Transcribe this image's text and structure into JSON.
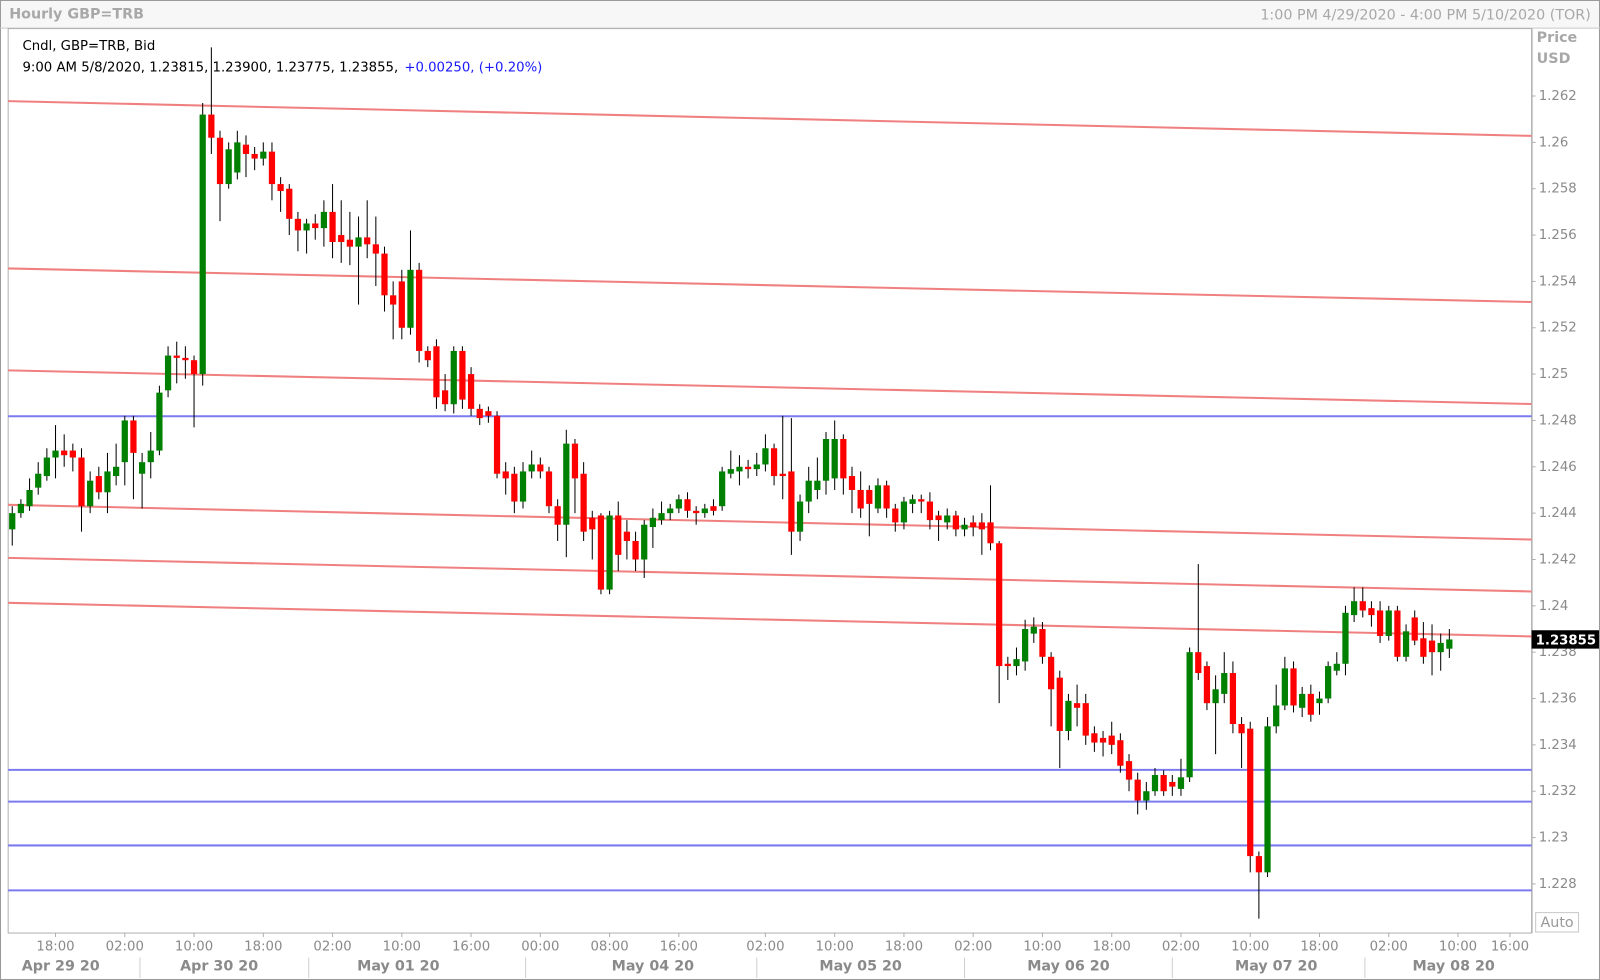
{
  "chart_data": {
    "type": "candlestick",
    "title": "Hourly GBP=TRB",
    "range_text": "1:00 PM 4/29/2020 - 4:00 PM 5/10/2020 (TOR)",
    "y_axis_label": "Price",
    "y_axis_unit": "USD",
    "auto_button": "Auto",
    "info": {
      "name": "Cndl, GBP=TRB, Bid",
      "values_text": "9:00 AM 5/8/2020, 1.23815, 1.23900, 1.23775, 1.23855,",
      "change_text": "+0.00250, (+0.20%)"
    },
    "up_color": "#008000",
    "down_color": "#ff0000",
    "trendline_color": "#f08080",
    "hline_color": "#7b7bf0",
    "open": [
      1.2433,
      1.244,
      1.2443,
      1.2451,
      1.2456,
      1.2464,
      1.2467,
      1.2467,
      1.2464,
      1.2443,
      1.2456,
      1.2449,
      1.2456,
      1.2462,
      1.248,
      1.2457,
      1.2462,
      1.2467,
      1.2493,
      1.2508,
      1.2507,
      1.2506,
      1.25,
      1.2612,
      1.2602,
      1.2582,
      1.2587,
      1.2599,
      1.2595,
      1.2593,
      1.2596,
      1.2582,
      1.258,
      1.2567,
      1.2562,
      1.2565,
      1.2563,
      1.257,
      1.256,
      1.2558,
      1.2555,
      1.2559,
      1.2556,
      1.2552,
      1.2534,
      1.254,
      1.252,
      1.2545,
      1.251,
      1.2512,
      1.2493,
      1.2487,
      1.251,
      1.25,
      1.2485,
      1.2484,
      1.2482,
      1.2458,
      1.2457,
      1.2445,
      1.2458,
      1.2461,
      1.2458,
      1.2443,
      1.2435,
      1.247,
      1.2457,
      1.2438,
      1.2439,
      1.2407,
      1.2439,
      1.2432,
      1.2428,
      1.242,
      1.2434,
      1.2437,
      1.244,
      1.2442,
      1.2446,
      1.2441,
      1.244,
      1.2443,
      1.2443,
      1.2457,
      1.2458,
      1.246,
      1.2459,
      1.2461,
      1.2468,
      1.2457,
      1.2458,
      1.2432,
      1.2445,
      1.245,
      1.2454,
      1.2455,
      1.2472,
      1.2456,
      1.245,
      1.245,
      1.2442,
      1.2452,
      1.2442,
      1.2436,
      1.2444,
      1.2446,
      1.2445,
      1.2439,
      1.2436,
      1.2439,
      1.2433,
      1.2436,
      1.2436,
      1.2436,
      1.2427,
      1.2375,
      1.2374,
      1.2376,
      1.2388,
      1.239,
      1.2378,
      1.2369,
      1.2346,
      1.2358,
      1.2358,
      1.2345,
      1.2343,
      1.2344,
      1.2342,
      1.2333,
      1.2325,
      1.2316,
      1.232,
      1.2327,
      1.2324,
      1.2321,
      1.2326,
      1.238,
      1.2374,
      1.2358,
      1.2362,
      1.2371,
      1.2349,
      1.2347,
      1.2292,
      1.2285,
      1.2348,
      1.2357,
      1.2373,
      1.2356,
      1.2362,
      1.2358,
      1.236,
      1.2372,
      1.2375,
      1.2396,
      1.2402,
      1.2399,
      1.2398,
      1.2387,
      1.2398,
      1.2378,
      1.2395,
      1.2386,
      1.2385,
      1.238,
      1.23815
    ],
    "high": [
      1.2443,
      1.2446,
      1.2455,
      1.2462,
      1.2468,
      1.2478,
      1.2474,
      1.247,
      1.2468,
      1.2458,
      1.246,
      1.2466,
      1.247,
      1.2482,
      1.2482,
      1.2466,
      1.2475,
      1.2495,
      1.2512,
      1.2514,
      1.2512,
      1.2508,
      1.2617,
      1.2641,
      1.2605,
      1.26,
      1.2605,
      1.2603,
      1.2598,
      1.26,
      1.26,
      1.2585,
      1.2582,
      1.257,
      1.2567,
      1.2569,
      1.2575,
      1.2582,
      1.2575,
      1.257,
      1.2568,
      1.2575,
      1.2568,
      1.2555,
      1.254,
      1.2545,
      1.2562,
      1.2548,
      1.2512,
      1.2515,
      1.25,
      1.2512,
      1.2512,
      1.2503,
      1.2487,
      1.2486,
      1.2484,
      1.2462,
      1.246,
      1.2462,
      1.2467,
      1.2464,
      1.246,
      1.2446,
      1.2476,
      1.2472,
      1.2462,
      1.2441,
      1.244,
      1.2441,
      1.2445,
      1.2437,
      1.2432,
      1.2437,
      1.2442,
      1.2445,
      1.2444,
      1.2448,
      1.2449,
      1.2443,
      1.2444,
      1.2446,
      1.246,
      1.2467,
      1.2465,
      1.2463,
      1.2466,
      1.2474,
      1.247,
      1.2482,
      1.2481,
      1.2448,
      1.246,
      1.2464,
      1.2475,
      1.248,
      1.2474,
      1.246,
      1.2458,
      1.2452,
      1.2455,
      1.2454,
      1.2444,
      1.2447,
      1.2448,
      1.2448,
      1.2449,
      1.2441,
      1.2442,
      1.2441,
      1.2438,
      1.2439,
      1.244,
      1.2452,
      1.2428,
      1.2378,
      1.2382,
      1.2394,
      1.2395,
      1.2393,
      1.238,
      1.2372,
      1.2362,
      1.2366,
      1.2362,
      1.2348,
      1.2346,
      1.235,
      1.2345,
      1.2336,
      1.2328,
      1.2324,
      1.233,
      1.2329,
      1.2327,
      1.2334,
      1.2382,
      1.2418,
      1.2376,
      1.237,
      1.238,
      1.2376,
      1.2352,
      1.235,
      1.2294,
      1.2352,
      1.2366,
      1.2378,
      1.2376,
      1.2365,
      1.2366,
      1.2363,
      1.2376,
      1.238,
      1.24,
      1.2408,
      1.2408,
      1.2402,
      1.2402,
      1.24,
      1.24,
      1.2392,
      1.2398,
      1.2393,
      1.2392,
      1.2388,
      1.239
    ],
    "low": [
      1.2426,
      1.2438,
      1.2441,
      1.2448,
      1.2454,
      1.2455,
      1.246,
      1.2458,
      1.2432,
      1.244,
      1.2446,
      1.244,
      1.2452,
      1.2452,
      1.2446,
      1.2442,
      1.2455,
      1.2465,
      1.249,
      1.2496,
      1.2498,
      1.2477,
      1.2495,
      1.2595,
      1.2566,
      1.258,
      1.2584,
      1.2585,
      1.2588,
      1.259,
      1.2575,
      1.257,
      1.256,
      1.2553,
      1.2552,
      1.2558,
      1.2555,
      1.255,
      1.2548,
      1.2547,
      1.253,
      1.255,
      1.2538,
      1.2527,
      1.2515,
      1.2515,
      1.2517,
      1.2505,
      1.2503,
      1.2485,
      1.2484,
      1.2483,
      1.2485,
      1.2482,
      1.2478,
      1.2479,
      1.2455,
      1.2448,
      1.244,
      1.2442,
      1.2455,
      1.2455,
      1.244,
      1.2428,
      1.2421,
      1.244,
      1.2428,
      1.242,
      1.2405,
      1.2405,
      1.2415,
      1.242,
      1.2415,
      1.2412,
      1.2425,
      1.2435,
      1.2437,
      1.244,
      1.2438,
      1.2435,
      1.2438,
      1.2439,
      1.2441,
      1.2455,
      1.2452,
      1.2455,
      1.2456,
      1.2458,
      1.2452,
      1.2446,
      1.2422,
      1.2428,
      1.244,
      1.2446,
      1.2448,
      1.245,
      1.2448,
      1.244,
      1.2438,
      1.243,
      1.244,
      1.2438,
      1.2432,
      1.2433,
      1.244,
      1.244,
      1.2433,
      1.2428,
      1.2433,
      1.243,
      1.243,
      1.243,
      1.2422,
      1.2424,
      1.2358,
      1.2368,
      1.237,
      1.2372,
      1.2384,
      1.2375,
      1.2348,
      1.233,
      1.2342,
      1.2348,
      1.234,
      1.2337,
      1.2335,
      1.2336,
      1.2328,
      1.232,
      1.231,
      1.2312,
      1.2318,
      1.2318,
      1.2318,
      1.2318,
      1.2324,
      1.2368,
      1.2355,
      1.2336,
      1.2358,
      1.2345,
      1.233,
      1.2285,
      1.2265,
      1.2283,
      1.2345,
      1.2355,
      1.2354,
      1.2352,
      1.235,
      1.2353,
      1.2358,
      1.237,
      1.237,
      1.2393,
      1.2395,
      1.2391,
      1.2384,
      1.2385,
      1.2376,
      1.2376,
      1.2383,
      1.2375,
      1.237,
      1.2372,
      1.23775
    ],
    "close": [
      1.244,
      1.2444,
      1.245,
      1.2457,
      1.2464,
      1.2467,
      1.2465,
      1.2464,
      1.2443,
      1.2454,
      1.2449,
      1.2458,
      1.246,
      1.248,
      1.2466,
      1.2462,
      1.2467,
      1.2492,
      1.2508,
      1.2507,
      1.2506,
      1.25,
      1.2612,
      1.2602,
      1.2582,
      1.2597,
      1.26,
      1.2595,
      1.2593,
      1.2596,
      1.2582,
      1.2579,
      1.2567,
      1.2562,
      1.2565,
      1.2563,
      1.257,
      1.2557,
      1.2557,
      1.2555,
      1.2559,
      1.2556,
      1.2552,
      1.2534,
      1.253,
      1.252,
      1.2545,
      1.251,
      1.2506,
      1.249,
      1.2487,
      1.251,
      1.2489,
      1.2485,
      1.2481,
      1.2482,
      1.2457,
      1.2455,
      1.2445,
      1.2458,
      1.2461,
      1.2458,
      1.2443,
      1.2435,
      1.247,
      1.2455,
      1.2432,
      1.2433,
      1.2407,
      1.2439,
      1.2422,
      1.2428,
      1.242,
      1.2435,
      1.2438,
      1.244,
      1.2442,
      1.2446,
      1.2441,
      1.244,
      1.2442,
      1.2441,
      1.2458,
      1.2459,
      1.246,
      1.2459,
      1.2461,
      1.2468,
      1.2456,
      1.2456,
      1.2432,
      1.2445,
      1.2454,
      1.2454,
      1.2472,
      1.2472,
      1.2455,
      1.245,
      1.2442,
      1.2444,
      1.2452,
      1.2442,
      1.2436,
      1.2445,
      1.2446,
      1.2445,
      1.2437,
      1.2437,
      1.2439,
      1.2433,
      1.2435,
      1.2434,
      1.2433,
      1.2427,
      1.2374,
      1.2374,
      1.2377,
      1.239,
      1.2391,
      1.2378,
      1.2364,
      1.2346,
      1.2359,
      1.2356,
      1.2344,
      1.2341,
      1.2341,
      1.234,
      1.2331,
      1.2325,
      1.2316,
      1.232,
      1.2327,
      1.232,
      1.2322,
      1.2326,
      1.238,
      1.2371,
      1.2358,
      1.2364,
      1.2371,
      1.2349,
      1.2345,
      1.2292,
      1.2285,
      1.2348,
      1.2357,
      1.2373,
      1.2357,
      1.2362,
      1.2353,
      1.236,
      1.2374,
      1.2375,
      1.2397,
      1.2402,
      1.2398,
      1.2396,
      1.2387,
      1.2398,
      1.2378,
      1.2389,
      1.2385,
      1.2378,
      1.238,
      1.2384,
      1.23855
    ],
    "trendlines": [
      {
        "start": 1.26178,
        "end": 1.26028
      },
      {
        "start": 1.25456,
        "end": 1.25311
      },
      {
        "start": 1.25016,
        "end": 1.24871
      },
      {
        "start": 1.24436,
        "end": 1.24286
      },
      {
        "start": 1.24207,
        "end": 1.24062
      },
      {
        "start": 1.24013,
        "end": 1.23868
      }
    ],
    "hlines": [
      1.24818,
      1.23292,
      1.23155,
      1.22966,
      1.22772
    ],
    "last_price": {
      "value": 1.23855,
      "label": "1.23855"
    },
    "xlim": [
      -0.47,
      175.5
    ],
    "ylim": [
      1.22588,
      1.26491
    ],
    "yticks": [
      1.262,
      1.26,
      1.258,
      1.256,
      1.254,
      1.252,
      1.25,
      1.248,
      1.246,
      1.244,
      1.242,
      1.24,
      1.238,
      1.236,
      1.234,
      1.232,
      1.23,
      1.228
    ],
    "xticks": [
      {
        "value": 5,
        "label": "18:00"
      },
      {
        "value": 13,
        "label": "02:00"
      },
      {
        "value": 21,
        "label": "10:00"
      },
      {
        "value": 29,
        "label": "18:00"
      },
      {
        "value": 37,
        "label": "02:00"
      },
      {
        "value": 45,
        "label": "10:00"
      },
      {
        "value": 53,
        "label": "16:00"
      },
      {
        "value": 61,
        "label": "00:00"
      },
      {
        "value": 69,
        "label": "08:00"
      },
      {
        "value": 77,
        "label": "16:00"
      },
      {
        "value": 87,
        "label": "02:00"
      },
      {
        "value": 95,
        "label": "10:00"
      },
      {
        "value": 103,
        "label": "18:00"
      },
      {
        "value": 111,
        "label": "02:00"
      },
      {
        "value": 119,
        "label": "10:00"
      },
      {
        "value": 127,
        "label": "18:00"
      },
      {
        "value": 135,
        "label": "02:00"
      },
      {
        "value": 143,
        "label": "10:00"
      },
      {
        "value": 151,
        "label": "18:00"
      },
      {
        "value": 159,
        "label": "02:00"
      },
      {
        "value": 167,
        "label": "10:00"
      },
      {
        "value": 173,
        "label": "16:00"
      }
    ],
    "xdates": [
      {
        "value": 5.6,
        "label": "Apr 29 20"
      },
      {
        "value": 23.9,
        "label": "Apr 30 20"
      },
      {
        "value": 44.6,
        "label": "May 01 20"
      },
      {
        "value": 74,
        "label": "May 04 20"
      },
      {
        "value": 98,
        "label": "May 05 20"
      },
      {
        "value": 122,
        "label": "May 06 20"
      },
      {
        "value": 146,
        "label": "May 07 20"
      },
      {
        "value": 166.5,
        "label": "May 08 20"
      }
    ]
  }
}
